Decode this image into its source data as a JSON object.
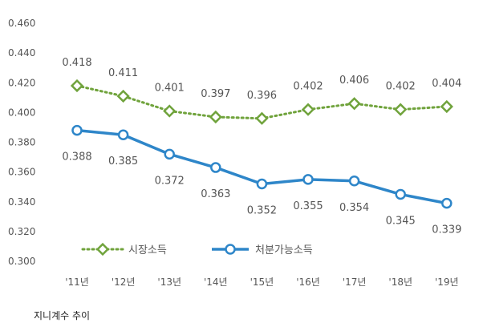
{
  "caption": "지니계수 추이",
  "chart_data": {
    "type": "line",
    "categories": [
      "'11년",
      "'12년",
      "'13년",
      "'14년",
      "'15년",
      "'16년",
      "'17년",
      "'18년",
      "'19년"
    ],
    "series": [
      {
        "name": "시장소득",
        "values": [
          0.418,
          0.411,
          0.401,
          0.397,
          0.396,
          0.402,
          0.406,
          0.402,
          0.404
        ],
        "color": "#70A33C",
        "style": "dotted",
        "marker": "diamond"
      },
      {
        "name": "처분가능소득",
        "values": [
          0.388,
          0.385,
          0.372,
          0.363,
          0.352,
          0.355,
          0.354,
          0.345,
          0.339
        ],
        "color": "#2E86C9",
        "style": "solid",
        "marker": "circle"
      }
    ],
    "ylim": [
      0.3,
      0.46
    ],
    "yticks": [
      "0.300",
      "0.320",
      "0.340",
      "0.360",
      "0.380",
      "0.400",
      "0.420",
      "0.440",
      "0.460"
    ],
    "grid": false,
    "legend": "bottom-left",
    "title": "",
    "xlabel": "",
    "ylabel": ""
  }
}
